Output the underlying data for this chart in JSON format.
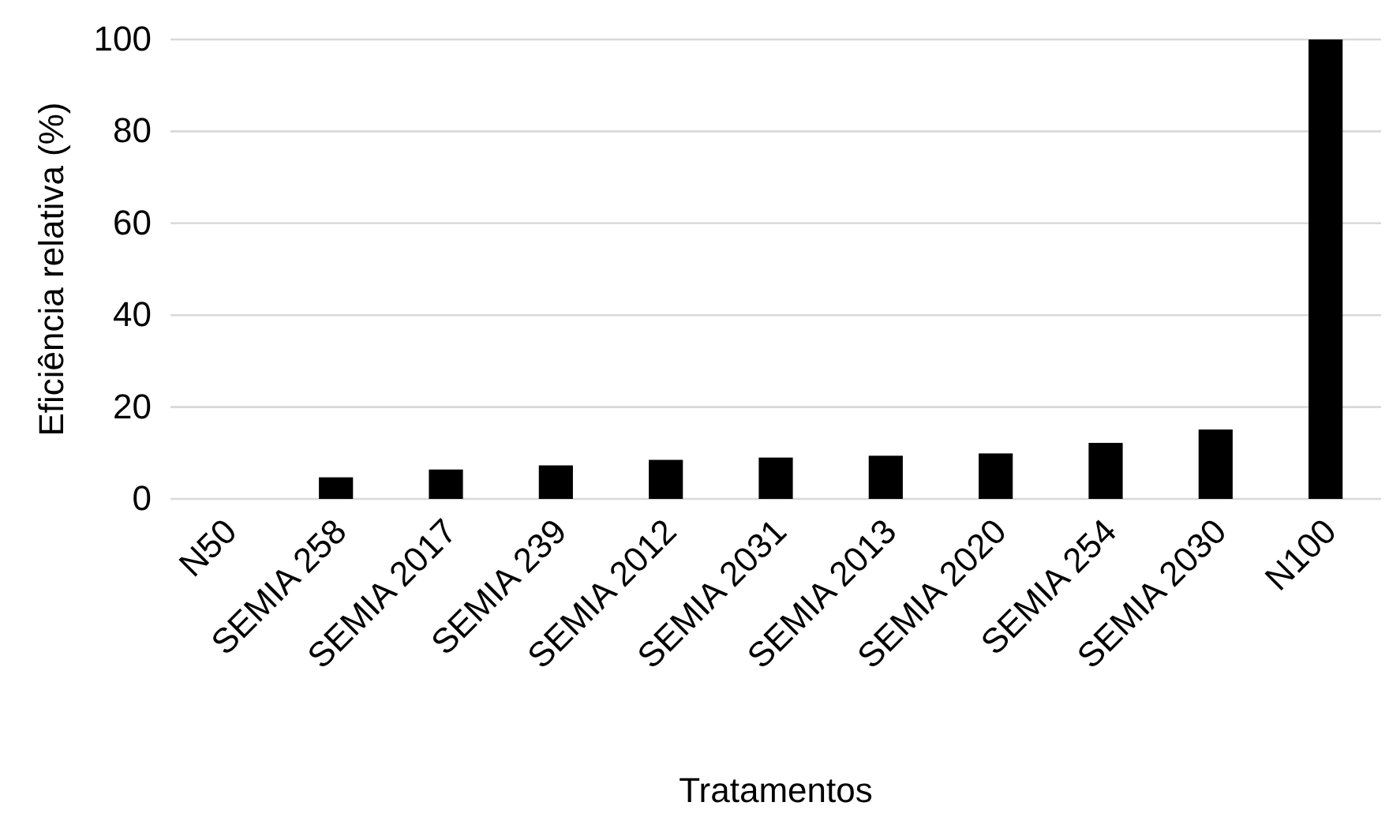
{
  "chart_data": {
    "type": "bar",
    "xlabel": "Tratamentos",
    "ylabel": "Eficiência relativa (%)",
    "categories": [
      "N50",
      "SEMIA 258",
      "SEMIA 2017",
      "SEMIA 239",
      "SEMIA 2012",
      "SEMIA 2031",
      "SEMIA 2013",
      "SEMIA 2020",
      "SEMIA 254",
      "SEMIA 2030",
      "N100"
    ],
    "values": [
      0,
      4.7,
      6.4,
      7.3,
      8.5,
      9.0,
      9.4,
      9.9,
      12.2,
      15.1,
      100
    ],
    "color": "#000000",
    "ylim": [
      0,
      100
    ],
    "yticks": [
      0,
      20,
      40,
      60,
      80,
      100
    ],
    "grid": "y"
  }
}
